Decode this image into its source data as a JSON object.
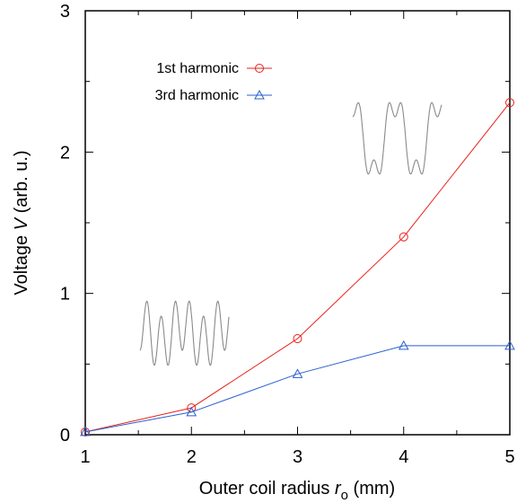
{
  "chart_data": {
    "type": "line",
    "x": [
      1,
      2,
      3,
      4,
      5
    ],
    "series": [
      {
        "name": "1st harmonic",
        "values": [
          0.02,
          0.19,
          0.68,
          1.4,
          2.35
        ],
        "color": "#e8211b",
        "marker": "circle"
      },
      {
        "name": "3rd harmonic",
        "values": [
          0.02,
          0.16,
          0.43,
          0.63,
          0.63
        ],
        "color": "#2a5fd1",
        "marker": "triangle"
      }
    ],
    "xlabel_prefix": "Outer coil radius ",
    "xlabel_var": "r",
    "xlabel_sub": "o",
    "xlabel_suffix": " (mm)",
    "ylabel_prefix": "Voltage ",
    "ylabel_var": "V",
    "ylabel_suffix": " (arb. u.)",
    "xlim": [
      1,
      5
    ],
    "ylim": [
      0,
      3
    ],
    "xticks": [
      "1",
      "2",
      "3",
      "4",
      "5"
    ],
    "yticks": [
      "0",
      "1",
      "2",
      "3"
    ],
    "grid": false,
    "legend_position": "top-left",
    "inset_waveform_color": "#8a8a8a"
  }
}
